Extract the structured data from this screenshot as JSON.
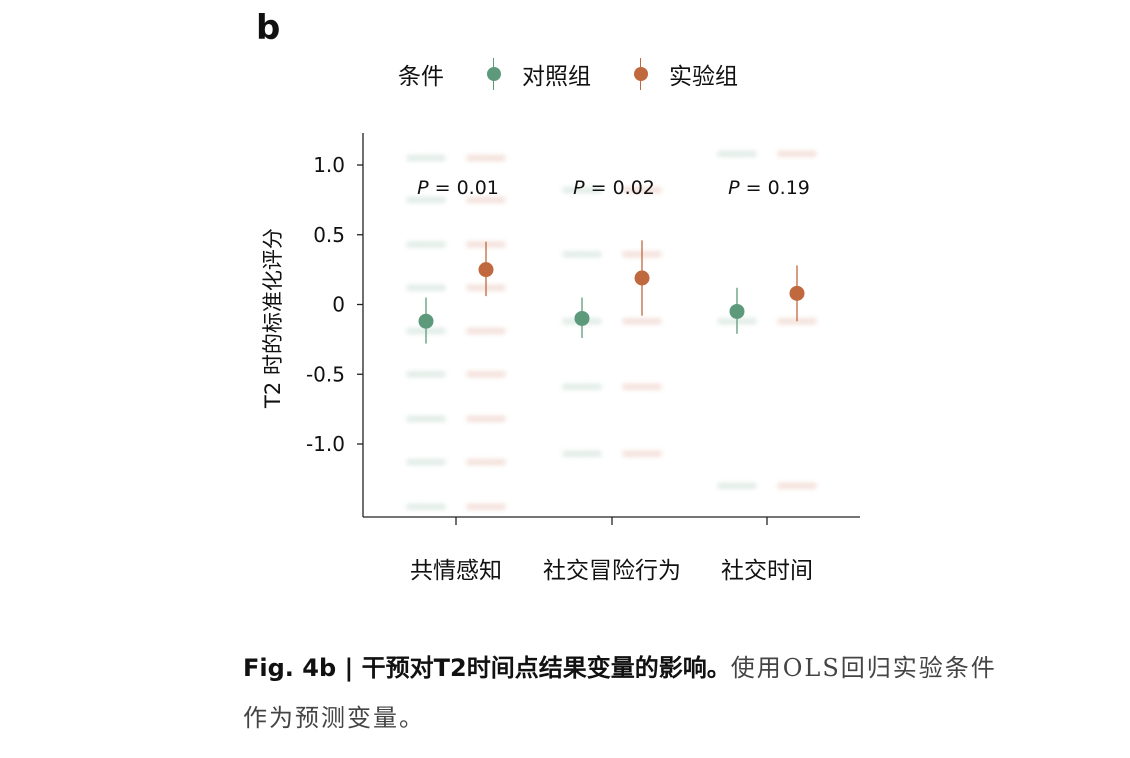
{
  "panel_label": "b",
  "legend": {
    "title": "条件",
    "items": [
      {
        "label": "对照组",
        "color": "#5c9a7b"
      },
      {
        "label": "实验组",
        "color": "#c0683e"
      }
    ]
  },
  "caption": {
    "lead": "Fig. 4b | 干预对T2时间点结果变量的影响。",
    "body": "使用OLS回归实验条件作为预测变量。"
  },
  "chart_data": {
    "type": "scatter",
    "ylabel": "T2 时的标准化评分",
    "ylim": [
      -1.5,
      1.2
    ],
    "yticks": [
      1.0,
      0.5,
      0,
      -0.5,
      -1.0
    ],
    "ytick_labels": [
      "1.0",
      "0.5",
      "0",
      "-0.5",
      "-1.0"
    ],
    "categories": [
      "共情感知",
      "社交冒险行为",
      "社交时间"
    ],
    "p_values": [
      {
        "prefix": "P",
        "text": " = 0.01"
      },
      {
        "prefix": "P",
        "text": " = 0.02"
      },
      {
        "prefix": "P",
        "text": " = 0.19"
      }
    ],
    "series": [
      {
        "name": "对照组",
        "color": "#5c9a7b",
        "means": [
          -0.12,
          -0.1,
          -0.05
        ],
        "ci_low": [
          -0.28,
          -0.24,
          -0.21
        ],
        "ci_high": [
          0.05,
          0.05,
          0.12
        ],
        "raw_levels": [
          [
            1.05,
            0.75,
            0.43,
            0.12,
            -0.19,
            -0.5,
            -0.82,
            -1.13,
            -1.45
          ],
          [
            0.82,
            0.36,
            -0.12,
            -0.59,
            -1.07
          ],
          [
            1.08,
            -0.12,
            -1.3
          ]
        ]
      },
      {
        "name": "实验组",
        "color": "#c0683e",
        "means": [
          0.25,
          0.19,
          0.08
        ],
        "ci_low": [
          0.06,
          -0.08,
          -0.12
        ],
        "ci_high": [
          0.45,
          0.46,
          0.28
        ],
        "raw_levels": [
          [
            1.05,
            0.75,
            0.43,
            0.12,
            -0.19,
            -0.5,
            -0.82,
            -1.13,
            -1.45
          ],
          [
            0.82,
            0.36,
            -0.12,
            -0.59,
            -1.07
          ],
          [
            1.08,
            -0.12,
            -1.3
          ]
        ]
      }
    ]
  }
}
